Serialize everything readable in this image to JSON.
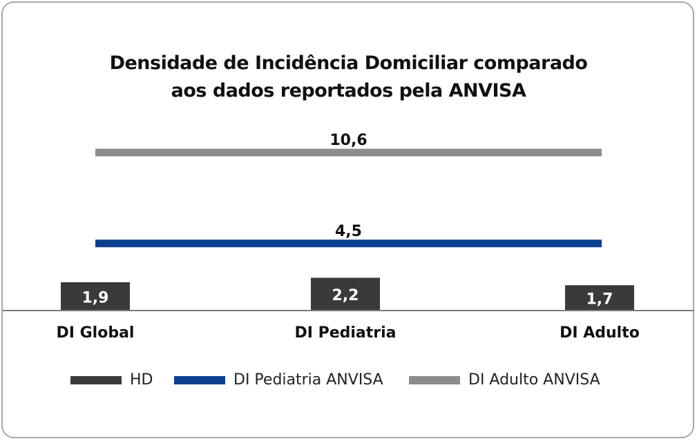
{
  "chart_data": {
    "type": "bar",
    "title_lines": [
      "Densidade de Incidência Domiciliar comparado",
      "aos dados reportados pela ANVISA"
    ],
    "categories": [
      "DI Global",
      "DI Pediatria",
      "DI Adulto"
    ],
    "series": [
      {
        "name": "HD",
        "type": "bar",
        "values": [
          1.9,
          2.2,
          1.7
        ],
        "labels": [
          "1,9",
          "2,2",
          "1,7"
        ],
        "color": "#3a3a3a"
      },
      {
        "name": "DI Pediatria ANVISA",
        "type": "line",
        "values": [
          4.5,
          4.5,
          4.5
        ],
        "label": "4,5",
        "color": "#0d3f8f"
      },
      {
        "name": "DI Adulto ANVISA",
        "type": "line",
        "values": [
          10.6,
          10.6,
          10.6
        ],
        "label": "10,6",
        "color": "#8c8c8c"
      }
    ],
    "legend_position": "bottom",
    "grid": false
  }
}
